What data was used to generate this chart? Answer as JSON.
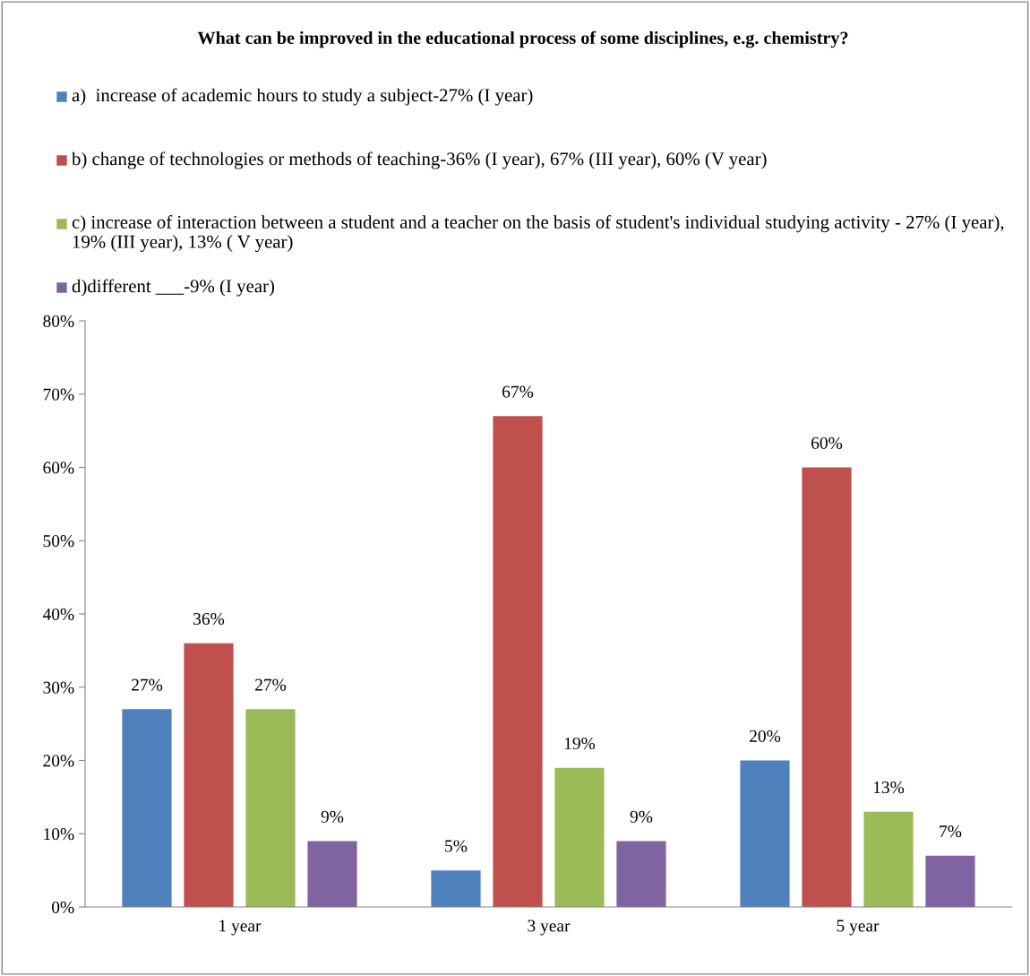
{
  "chart_data": {
    "type": "bar",
    "title": "What can be improved in the educational process of some disciplines, e.g. chemistry?",
    "categories": [
      "1 year",
      "3 year",
      "5 year"
    ],
    "series": [
      {
        "name": "a)  increase of academic hours to study a subject-27% (I year)",
        "color": "#4f81bd",
        "values": [
          27,
          5,
          20
        ],
        "value_labels": [
          "27%",
          "5%",
          "20%"
        ]
      },
      {
        "name": "b) change of technologies or methods of teaching-36% (I year), 67% (III year), 60% (V year)",
        "color": "#c0504d",
        "values": [
          36,
          67,
          60
        ],
        "value_labels": [
          "36%",
          "67%",
          "60%"
        ]
      },
      {
        "name": "c) increase of interaction between a student and a teacher on the basis of student's individual studying activity - 27% (I year), 19% (III year), 13% ( V year)",
        "color": "#9bbb59",
        "values": [
          27,
          19,
          13
        ],
        "value_labels": [
          "27%",
          "19%",
          "13%"
        ]
      },
      {
        "name": "d)different ___-9% (I year)",
        "color": "#8064a2",
        "values": [
          9,
          9,
          7
        ],
        "value_labels": [
          "9%",
          "9%",
          "7%"
        ]
      }
    ],
    "ylim": [
      0,
      80
    ],
    "yticks": [
      {
        "value": 0,
        "label": "0%"
      },
      {
        "value": 10,
        "label": "10%"
      },
      {
        "value": 20,
        "label": "20%"
      },
      {
        "value": 30,
        "label": "30%"
      },
      {
        "value": 40,
        "label": "40%"
      },
      {
        "value": 50,
        "label": "50%"
      },
      {
        "value": 60,
        "label": "60%"
      },
      {
        "value": 70,
        "label": "70%"
      },
      {
        "value": 80,
        "label": "80%"
      }
    ],
    "grid": false,
    "legend": "top"
  }
}
